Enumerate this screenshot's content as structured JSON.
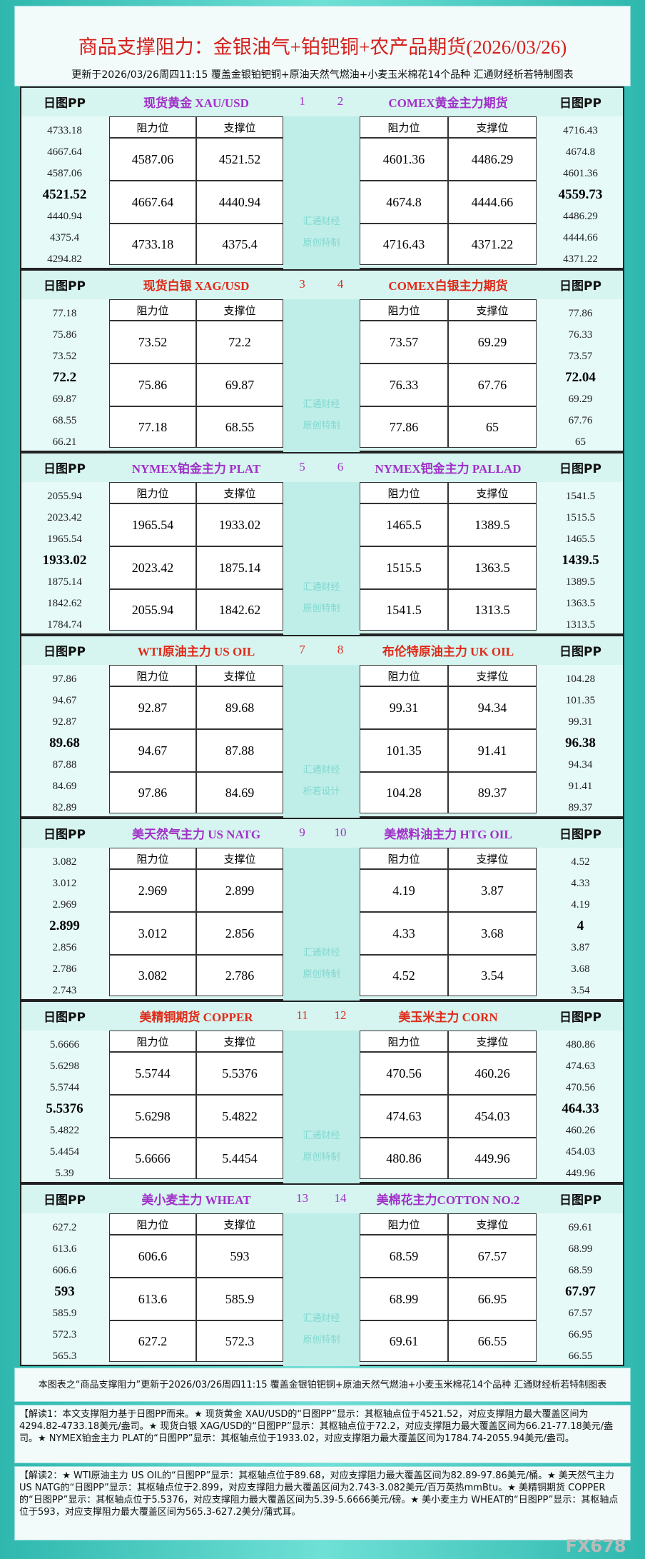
{
  "title": "商品支撑阻力：金银油气+铂钯铜+农产品期货(2026/03/26)",
  "subtitle": "更新于2026/03/26周四11:15 覆盖金银铂钯铜+原油天然气燃油+小麦玉米棉花14个品种 汇通财经析若特制图表",
  "labels": {
    "pp": "日图PP",
    "resistance": "阻力位",
    "support": "支撑位"
  },
  "sections": [
    {
      "left": {
        "name": "现货黄金 XAU/USD",
        "number": "1",
        "pp": [
          "4733.18",
          "4667.64",
          "4587.06",
          "4521.52",
          "4440.94",
          "4375.4",
          "4294.82"
        ],
        "rows": [
          [
            "4587.06",
            "4521.52"
          ],
          [
            "4667.64",
            "4440.94"
          ],
          [
            "4733.18",
            "4375.4"
          ]
        ]
      },
      "right": {
        "name": "COMEX黄金主力期货",
        "number": "2",
        "pp": [
          "4716.43",
          "4674.8",
          "4601.36",
          "4559.73",
          "4486.29",
          "4444.66",
          "4371.22"
        ],
        "rows": [
          [
            "4601.36",
            "4486.29"
          ],
          [
            "4674.8",
            "4444.66"
          ],
          [
            "4716.43",
            "4371.22"
          ]
        ]
      },
      "watermark": [
        "汇通财经",
        "原创特制"
      ]
    },
    {
      "left": {
        "name": "现货白银 XAG/USD",
        "number": "3",
        "pp": [
          "77.18",
          "75.86",
          "73.52",
          "72.2",
          "69.87",
          "68.55",
          "66.21"
        ],
        "rows": [
          [
            "73.52",
            "72.2"
          ],
          [
            "75.86",
            "69.87"
          ],
          [
            "77.18",
            "68.55"
          ]
        ]
      },
      "right": {
        "name": "COMEX白银主力期货",
        "number": "4",
        "pp": [
          "77.86",
          "76.33",
          "73.57",
          "72.04",
          "69.29",
          "67.76",
          "65"
        ],
        "rows": [
          [
            "73.57",
            "69.29"
          ],
          [
            "76.33",
            "67.76"
          ],
          [
            "77.86",
            "65"
          ]
        ]
      },
      "watermark": [
        "汇通财经",
        "原创特制"
      ]
    },
    {
      "left": {
        "name": "NYMEX铂金主力 PLAT",
        "number": "5",
        "pp": [
          "2055.94",
          "2023.42",
          "1965.54",
          "1933.02",
          "1875.14",
          "1842.62",
          "1784.74"
        ],
        "rows": [
          [
            "1965.54",
            "1933.02"
          ],
          [
            "2023.42",
            "1875.14"
          ],
          [
            "2055.94",
            "1842.62"
          ]
        ]
      },
      "right": {
        "name": "NYMEX钯金主力 PALLAD",
        "number": "6",
        "pp": [
          "1541.5",
          "1515.5",
          "1465.5",
          "1439.5",
          "1389.5",
          "1363.5",
          "1313.5"
        ],
        "rows": [
          [
            "1465.5",
            "1389.5"
          ],
          [
            "1515.5",
            "1363.5"
          ],
          [
            "1541.5",
            "1313.5"
          ]
        ]
      },
      "watermark": [
        "汇通财经",
        "原创特制"
      ]
    },
    {
      "left": {
        "name": "WTI原油主力 US OIL",
        "number": "7",
        "pp": [
          "97.86",
          "94.67",
          "92.87",
          "89.68",
          "87.88",
          "84.69",
          "82.89"
        ],
        "rows": [
          [
            "92.87",
            "89.68"
          ],
          [
            "94.67",
            "87.88"
          ],
          [
            "97.86",
            "84.69"
          ]
        ]
      },
      "right": {
        "name": "布伦特原油主力 UK OIL",
        "number": "8",
        "pp": [
          "104.28",
          "101.35",
          "99.31",
          "96.38",
          "94.34",
          "91.41",
          "89.37"
        ],
        "rows": [
          [
            "99.31",
            "94.34"
          ],
          [
            "101.35",
            "91.41"
          ],
          [
            "104.28",
            "89.37"
          ]
        ]
      },
      "watermark": [
        "汇通财经",
        "析若设计"
      ]
    },
    {
      "left": {
        "name": "美天然气主力 US NATG",
        "number": "9",
        "pp": [
          "3.082",
          "3.012",
          "2.969",
          "2.899",
          "2.856",
          "2.786",
          "2.743"
        ],
        "rows": [
          [
            "2.969",
            "2.899"
          ],
          [
            "3.012",
            "2.856"
          ],
          [
            "3.082",
            "2.786"
          ]
        ]
      },
      "right": {
        "name": "美燃料油主力 HTG OIL",
        "number": "10",
        "pp": [
          "4.52",
          "4.33",
          "4.19",
          "4",
          "3.87",
          "3.68",
          "3.54"
        ],
        "rows": [
          [
            "4.19",
            "3.87"
          ],
          [
            "4.33",
            "3.68"
          ],
          [
            "4.52",
            "3.54"
          ]
        ]
      },
      "watermark": [
        "汇通财经",
        "原创特制"
      ]
    },
    {
      "left": {
        "name": "美精铜期货 COPPER",
        "number": "11",
        "pp": [
          "5.6666",
          "5.6298",
          "5.5744",
          "5.5376",
          "5.4822",
          "5.4454",
          "5.39"
        ],
        "rows": [
          [
            "5.5744",
            "5.5376"
          ],
          [
            "5.6298",
            "5.4822"
          ],
          [
            "5.6666",
            "5.4454"
          ]
        ]
      },
      "right": {
        "name": "美玉米主力 CORN",
        "number": "12",
        "pp": [
          "480.86",
          "474.63",
          "470.56",
          "464.33",
          "460.26",
          "454.03",
          "449.96"
        ],
        "rows": [
          [
            "470.56",
            "460.26"
          ],
          [
            "474.63",
            "454.03"
          ],
          [
            "480.86",
            "449.96"
          ]
        ]
      },
      "watermark": [
        "汇通财经",
        "原创特制"
      ]
    },
    {
      "left": {
        "name": "美小麦主力 WHEAT",
        "number": "13",
        "pp": [
          "627.2",
          "613.6",
          "606.6",
          "593",
          "585.9",
          "572.3",
          "565.3"
        ],
        "rows": [
          [
            "606.6",
            "593"
          ],
          [
            "613.6",
            "585.9"
          ],
          [
            "627.2",
            "572.3"
          ]
        ]
      },
      "right": {
        "name": "美棉花主力COTTON NO.2",
        "number": "14",
        "pp": [
          "69.61",
          "68.99",
          "68.59",
          "67.97",
          "67.57",
          "66.95",
          "66.55"
        ],
        "rows": [
          [
            "68.59",
            "67.57"
          ],
          [
            "68.99",
            "66.95"
          ],
          [
            "69.61",
            "66.55"
          ]
        ]
      },
      "watermark": [
        "汇通财经",
        "原创特制"
      ]
    }
  ],
  "footer": {
    "note": "本图表之“商品支撑阻力”更新于2026/03/26周四11:15 覆盖金银铂钯铜+原油天然气燃油+小麦玉米棉花14个品种 汇通财经析若特制图表",
    "interpretation1": "【解读1：本文支撑阻力基于日图PP而来。★ 现货黄金 XAU/USD的“日图PP”显示：其枢轴点位于4521.52，对应支撑阻力最大覆盖区间为4294.82-4733.18美元/盎司。★ 现货白银 XAG/USD的“日图PP”显示：其枢轴点位于72.2，对应支撑阻力最大覆盖区间为66.21-77.18美元/盎司。★ NYMEX铂金主力 PLAT的“日图PP”显示：其枢轴点位于1933.02，对应支撑阻力最大覆盖区间为1784.74-2055.94美元/盎司。",
    "interpretation2": "【解读2：★ WTI原油主力 US OIL的“日图PP”显示：其枢轴点位于89.68，对应支撑阻力最大覆盖区间为82.89-97.86美元/桶。★ 美天然气主力 US NATG的“日图PP”显示：其枢轴点位于2.899，对应支撑阻力最大覆盖区间为2.743-3.082美元/百万英热mmBtu。★ 美精铜期货 COPPER的“日图PP”显示：其枢轴点位于5.5376，对应支撑阻力最大覆盖区间为5.39-5.6666美元/磅。★ 美小麦主力 WHEAT的“日图PP”显示：其枢轴点位于593，对应支撑阻力最大覆盖区间为565.3-627.2美分/蒲式耳。"
  },
  "logo": "FX678"
}
